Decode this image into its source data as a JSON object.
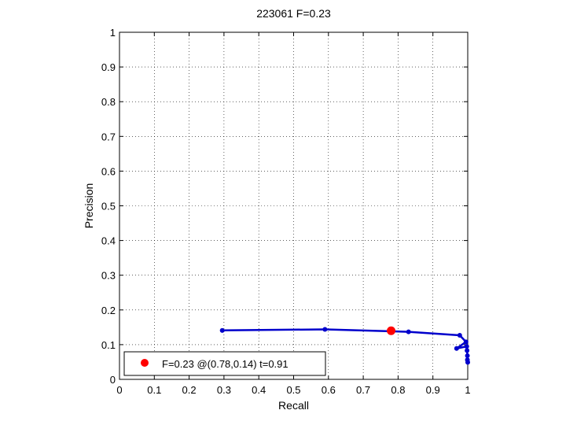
{
  "chart_data": {
    "type": "line",
    "title": "223061 F=0.23",
    "xlabel": "Recall",
    "ylabel": "Precision",
    "xlim": [
      0,
      1
    ],
    "ylim": [
      0,
      1
    ],
    "grid": true,
    "xticks": [
      "0",
      "0.1",
      "0.2",
      "0.3",
      "0.4",
      "0.5",
      "0.6",
      "0.7",
      "0.8",
      "0.9",
      "1"
    ],
    "yticks": [
      "0",
      "0.1",
      "0.2",
      "0.3",
      "0.4",
      "0.5",
      "0.6",
      "0.7",
      "0.8",
      "0.9",
      "1"
    ],
    "series": [
      {
        "color": "#0000cc",
        "x": [
          0.295,
          0.59,
          0.83,
          0.977,
          0.995,
          0.968,
          0.997,
          0.998,
          0.999,
          0.999,
          1.0
        ],
        "y": [
          0.141,
          0.144,
          0.137,
          0.127,
          0.108,
          0.089,
          0.095,
          0.083,
          0.068,
          0.056,
          0.049
        ]
      }
    ],
    "highlight_point": {
      "x": 0.78,
      "y": 0.14,
      "color": "#ff0000"
    },
    "legend": {
      "placement": "bottom-left",
      "entries": [
        {
          "label": "F=0.23 @(0.78,0.14) t=0.91",
          "color": "#ff0000"
        }
      ]
    }
  }
}
